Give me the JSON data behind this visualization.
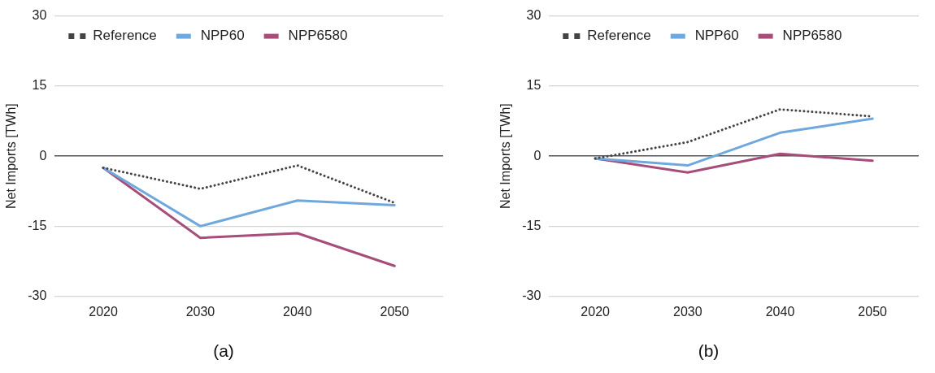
{
  "chart_data": [
    {
      "type": "line",
      "title": "(a)",
      "ylabel": "Net Imports [TWh]",
      "categories": [
        "2020",
        "2030",
        "2040",
        "2050"
      ],
      "series": [
        {
          "name": "Reference",
          "color": "#444444",
          "line_style": "dotted",
          "values": [
            -2.5,
            -7,
            -2,
            -10
          ]
        },
        {
          "name": "NPP60",
          "color": "#6fa8dc",
          "line_style": "solid",
          "values": [
            -2.5,
            -15,
            -9.5,
            -10.5
          ]
        },
        {
          "name": "NPP6580",
          "color": "#a64d79",
          "line_style": "solid",
          "values": [
            -2.5,
            -17.5,
            -16.5,
            -23.5
          ]
        }
      ],
      "ylim": [
        -30,
        30
      ],
      "yticks": [
        -30,
        -15,
        0,
        15,
        30
      ],
      "grid": "y",
      "legend": "top left",
      "marker": "none"
    },
    {
      "type": "line",
      "title": "(b)",
      "ylabel": "Net Imports [TWh]",
      "categories": [
        "2020",
        "2030",
        "2040",
        "2050"
      ],
      "series": [
        {
          "name": "Reference",
          "color": "#444444",
          "line_style": "dotted",
          "values": [
            -0.5,
            3,
            10,
            8.5
          ]
        },
        {
          "name": "NPP60",
          "color": "#6fa8dc",
          "line_style": "solid",
          "values": [
            -0.5,
            -2,
            5,
            8
          ]
        },
        {
          "name": "NPP6580",
          "color": "#a64d79",
          "line_style": "solid",
          "values": [
            -0.5,
            -3.5,
            0.5,
            -1
          ]
        }
      ],
      "ylim": [
        -30,
        30
      ],
      "yticks": [
        -30,
        -15,
        0,
        15,
        30
      ],
      "grid": "y",
      "legend": "top left",
      "marker": "none"
    }
  ]
}
